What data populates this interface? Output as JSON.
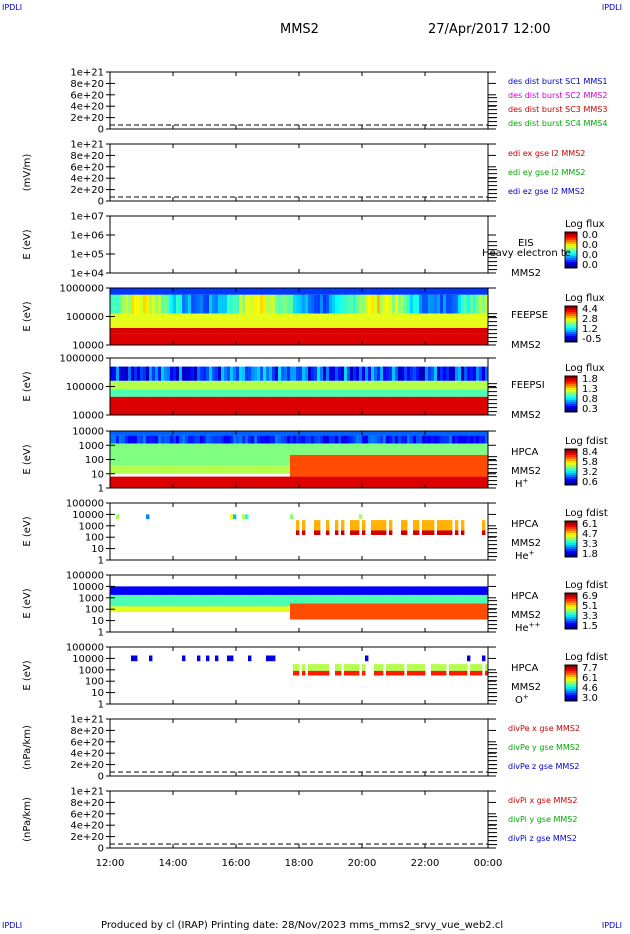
{
  "corners": {
    "top_left": "IPDLI",
    "top_right": "IPDLI",
    "bottom_left": "IPDLI",
    "bottom_right": "IPDLI"
  },
  "header": {
    "spacecraft": "MMS2",
    "datetime": "27/Apr/2017 12:00"
  },
  "footer": {
    "text": "Produced by cl (IRAP)   Printing date: 28/Nov/2023   mms_mms2_srvy_vue_web2.cl"
  },
  "time_axis": {
    "ticks": [
      "12:00",
      "14:00",
      "16:00",
      "18:00",
      "20:00",
      "22:00",
      "00:00"
    ]
  },
  "colors": {
    "red": "#cc0000",
    "green": "#00aa00",
    "blue": "#0000cc",
    "magenta": "#cc00cc"
  },
  "chart_data": [
    {
      "id": "p1",
      "type": "line",
      "ylabel": "",
      "yticks": [
        "1e+21",
        "8e+20",
        "6e+20",
        "4e+20",
        "2e+20",
        "0"
      ],
      "ylim": [
        0,
        1e+21
      ],
      "dashed_zero": true,
      "legend": [
        {
          "text": "des dist burst SC1 MMS1",
          "color": "#0000cc"
        },
        {
          "text": "des dist burst SC2 MMS2",
          "color": "#cc00cc"
        },
        {
          "text": "des dist burst SC3 MMS3",
          "color": "#cc0000"
        },
        {
          "text": "des dist burst SC4 MMS4",
          "color": "#00aa00"
        }
      ]
    },
    {
      "id": "p2",
      "type": "line",
      "ylabel": "(mV/m)",
      "yticks": [
        "1e+21",
        "8e+20",
        "6e+20",
        "4e+20",
        "2e+20",
        "0"
      ],
      "ylim": [
        0,
        1e+21
      ],
      "dashed_zero": true,
      "legend": [
        {
          "text": "edi ex gse l2 MMS2",
          "color": "#cc0000"
        },
        {
          "text": "edi ey gse l2 MMS2",
          "color": "#00aa00"
        },
        {
          "text": "edi ez gse l2 MMS2",
          "color": "#0000cc"
        }
      ]
    },
    {
      "id": "p3",
      "type": "heatmap",
      "ylabel": "E (eV)",
      "yticks": [
        "1e+07",
        "1e+06",
        "1e+05",
        "1e+04"
      ],
      "ylim": [
        10000.0,
        10000000.0
      ],
      "log": true,
      "instrument": [
        "EIS",
        "MMS2"
      ],
      "overlay": "Heavy electron te",
      "cbar_title": "Log flux",
      "cbar_ticks": [
        "0.0",
        "0.0",
        "0.0",
        "0.0"
      ],
      "band": null
    },
    {
      "id": "p4",
      "type": "heatmap",
      "ylabel": "E (eV)",
      "yticks": [
        "1000000",
        "100000",
        "10000"
      ],
      "ylim": [
        10000.0,
        1000000.0
      ],
      "log": true,
      "instrument": [
        "FEEPSE",
        "MMS2"
      ],
      "cbar_title": "Log flux",
      "cbar_ticks": [
        "4.4",
        "2.8",
        "1.2",
        "-0.5"
      ],
      "band": "feepse"
    },
    {
      "id": "p5",
      "type": "heatmap",
      "ylabel": "E (eV)",
      "yticks": [
        "1000000",
        "100000",
        "10000"
      ],
      "ylim": [
        10000.0,
        1000000.0
      ],
      "log": true,
      "instrument": [
        "FEEPSI",
        "MMS2"
      ],
      "cbar_title": "Log flux",
      "cbar_ticks": [
        "1.8",
        "1.3",
        "0.8",
        "0.3"
      ],
      "band": "feepsi"
    },
    {
      "id": "p6",
      "type": "heatmap",
      "ylabel": "E (eV)",
      "yticks": [
        "10000",
        "1000",
        "100",
        "10",
        "1"
      ],
      "ylim": [
        1,
        30000.0
      ],
      "log": true,
      "instrument": [
        "HPCA",
        "MMS2"
      ],
      "species": "H",
      "charge": "+",
      "cbar_title": "Log fdist",
      "cbar_ticks": [
        "8.4",
        "5.8",
        "3.2",
        "0.6"
      ],
      "band": "hplus"
    },
    {
      "id": "p7",
      "type": "heatmap",
      "ylabel": "E (eV)",
      "yticks": [
        "100000",
        "10000",
        "1000",
        "100",
        "10",
        "1"
      ],
      "ylim": [
        1,
        100000.0
      ],
      "log": true,
      "instrument": [
        "HPCA",
        "MMS2"
      ],
      "species": "He",
      "charge": "+",
      "cbar_title": "Log fdist",
      "cbar_ticks": [
        "6.1",
        "4.7",
        "3.3",
        "1.8"
      ],
      "band": "heplus"
    },
    {
      "id": "p8",
      "type": "heatmap",
      "ylabel": "E (eV)",
      "yticks": [
        "100000",
        "10000",
        "1000",
        "100",
        "10",
        "1"
      ],
      "ylim": [
        1,
        100000.0
      ],
      "log": true,
      "instrument": [
        "HPCA",
        "MMS2"
      ],
      "species": "He",
      "charge": "++",
      "cbar_title": "Log fdist",
      "cbar_ticks": [
        "6.9",
        "5.1",
        "3.3",
        "1.5"
      ],
      "band": "hepp"
    },
    {
      "id": "p9",
      "type": "heatmap",
      "ylabel": "E (eV)",
      "yticks": [
        "100000",
        "10000",
        "1000",
        "100",
        "10",
        "1"
      ],
      "ylim": [
        1,
        100000.0
      ],
      "log": true,
      "instrument": [
        "HPCA",
        "MMS2"
      ],
      "species": "O",
      "charge": "+",
      "cbar_title": "Log fdist",
      "cbar_ticks": [
        "7.7",
        "6.1",
        "4.6",
        "3.0"
      ],
      "band": "oplus"
    },
    {
      "id": "p10",
      "type": "line",
      "ylabel": "(nPa/km)",
      "yticks": [
        "1e+21",
        "8e+20",
        "6e+20",
        "4e+20",
        "2e+20",
        "0"
      ],
      "ylim": [
        0,
        1e+21
      ],
      "dashed_zero": true,
      "legend": [
        {
          "text": "divPe x gse MMS2",
          "color": "#cc0000"
        },
        {
          "text": "divPe y gse MMS2",
          "color": "#00aa00"
        },
        {
          "text": "divPe z gse MMS2",
          "color": "#0000cc"
        }
      ]
    },
    {
      "id": "p11",
      "type": "line",
      "ylabel": "(nPa/km)",
      "yticks": [
        "1e+21",
        "8e+20",
        "6e+20",
        "4e+20",
        "2e+20",
        "0"
      ],
      "ylim": [
        0,
        1e+21
      ],
      "dashed_zero": true,
      "legend": [
        {
          "text": "divPi x gse MMS2",
          "color": "#cc0000"
        },
        {
          "text": "divPi y gse MMS2",
          "color": "#00aa00"
        },
        {
          "text": "divPi z gse MMS2",
          "color": "#0000cc"
        }
      ]
    }
  ]
}
